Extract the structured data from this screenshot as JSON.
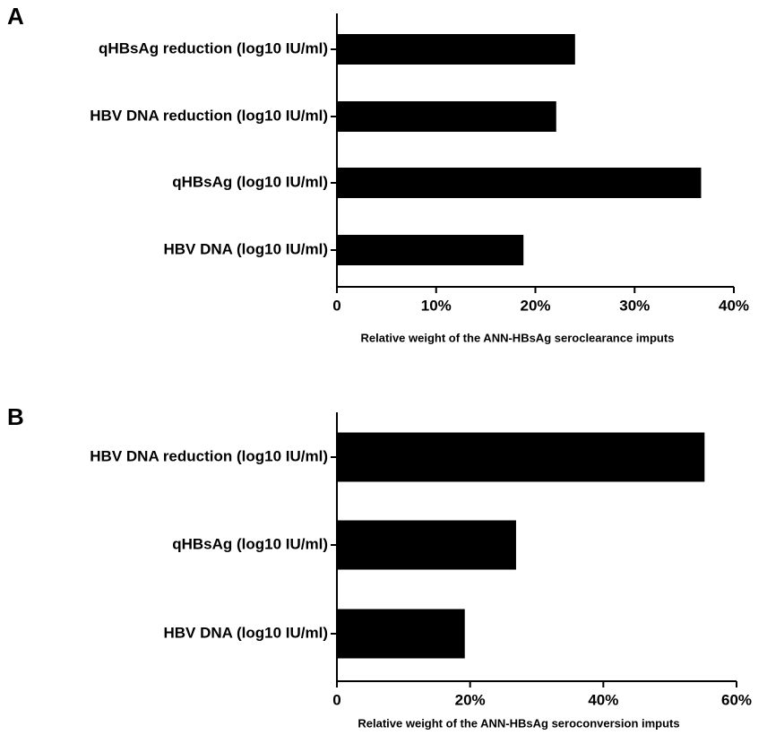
{
  "chart_data": [
    {
      "type": "bar",
      "orientation": "horizontal",
      "title": "A",
      "x_label": "Relative weight of the ANN-HBsAg seroclearance imputs",
      "categories": [
        "qHBsAg reduction (log10 IU/ml)",
        "HBV DNA reduction (log10 IU/ml)",
        "qHBsAg (log10 IU/ml)",
        "HBV DNA (log10 IU/ml)"
      ],
      "values": [
        24.0,
        22.1,
        36.7,
        18.8
      ],
      "color": "#000000",
      "xlim": [
        0,
        40
      ],
      "xticks": [
        0,
        {
          "value": 10,
          "label": "10%"
        },
        {
          "value": 20,
          "label": "20%"
        },
        {
          "value": 30,
          "label": "30%"
        },
        {
          "value": 40,
          "label": "40%"
        }
      ]
    },
    {
      "type": "bar",
      "orientation": "horizontal",
      "title": "B",
      "x_label": "Relative weight of the ANN-HBsAg seroconversion imputs",
      "categories": [
        "HBV DNA reduction (log10 IU/ml)",
        "qHBsAg (log10 IU/ml)",
        "HBV DNA (log10 IU/ml)"
      ],
      "values": [
        55.2,
        26.9,
        19.2
      ],
      "color": "#000000",
      "xlim": [
        0,
        60
      ],
      "xticks": [
        0,
        {
          "value": 20,
          "label": "20%"
        },
        {
          "value": 40,
          "label": "40%"
        },
        {
          "value": 60,
          "label": "60%"
        }
      ]
    }
  ]
}
